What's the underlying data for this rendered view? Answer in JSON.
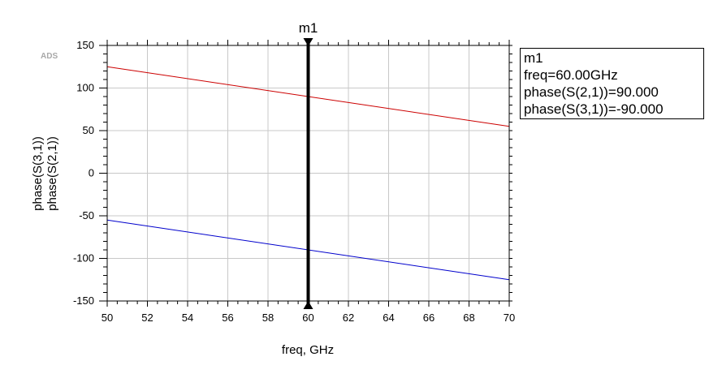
{
  "watermark": "ADS",
  "chart_data": {
    "type": "line",
    "xlabel": "freq, GHz",
    "ylabels": [
      {
        "text": "phase(S(3,1))",
        "color": "#0000cc"
      },
      {
        "text": "phase(S(2,1))",
        "color": "#cc0000"
      }
    ],
    "xlim": [
      50,
      70
    ],
    "ylim": [
      -150,
      150
    ],
    "x_ticks": [
      50,
      52,
      54,
      56,
      58,
      60,
      62,
      64,
      66,
      68,
      70
    ],
    "y_ticks": [
      -150,
      -100,
      -50,
      0,
      50,
      100,
      150
    ],
    "grid": true,
    "series": [
      {
        "name": "phase(S(2,1))",
        "color": "#cc0000",
        "x": [
          50,
          70
        ],
        "y": [
          125,
          55
        ]
      },
      {
        "name": "phase(S(3,1))",
        "color": "#0000cc",
        "x": [
          50,
          70
        ],
        "y": [
          -55,
          -125
        ]
      }
    ],
    "marker": {
      "name": "m1",
      "x": 60,
      "readout": [
        "m1",
        "freq=60.00GHz",
        "phase(S(2,1))=90.000",
        "phase(S(3,1))=-90.000"
      ]
    }
  }
}
